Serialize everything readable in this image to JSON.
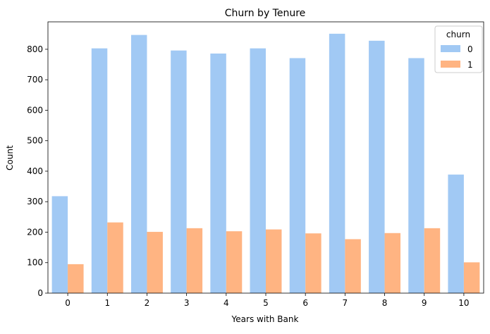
{
  "chart_data": {
    "type": "bar",
    "title": "Churn by Tenure",
    "xlabel": "Years with Bank",
    "ylabel": "Count",
    "categories": [
      "0",
      "1",
      "2",
      "3",
      "4",
      "5",
      "6",
      "7",
      "8",
      "9",
      "10"
    ],
    "ylim": [
      0,
      890
    ],
    "yticks": [
      0,
      100,
      200,
      300,
      400,
      500,
      600,
      700,
      800
    ],
    "legend": {
      "title": "churn",
      "placement": "top-right"
    },
    "grid": false,
    "series": [
      {
        "name": "0",
        "color": "#a1c9f4",
        "values": [
          318,
          803,
          847,
          796,
          786,
          803,
          771,
          851,
          828,
          771,
          389
        ]
      },
      {
        "name": "1",
        "color": "#ffb482",
        "values": [
          95,
          232,
          201,
          213,
          203,
          209,
          196,
          177,
          197,
          213,
          101
        ]
      }
    ]
  }
}
